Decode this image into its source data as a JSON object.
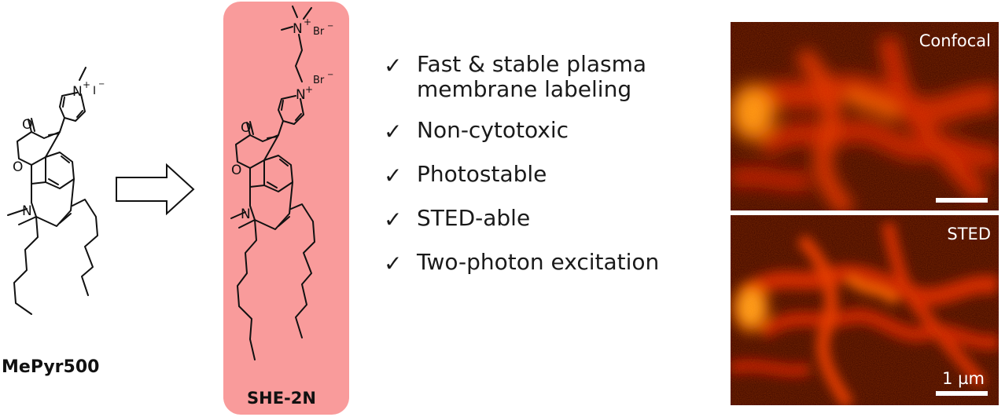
{
  "molecule_left": {
    "name": "MePyr500",
    "counterion": "I",
    "charge": "+",
    "atoms": {
      "n_pyridinium": "N",
      "o_ring": "O",
      "o_carbonyl": "O",
      "n_amine": "N"
    }
  },
  "molecule_right": {
    "name": "SHE-2N",
    "counterion_1": "Br",
    "counterion_2": "Br",
    "charge": "+",
    "atoms": {
      "n_ammonium": "N",
      "n_pyridinium": "N",
      "o_ring": "O",
      "o_carbonyl": "O",
      "n_amine": "N"
    },
    "panel_color": "#f99b9b"
  },
  "features": [
    {
      "check": "✓",
      "text": "Fast & stable plasma membrane labeling"
    },
    {
      "check": "✓",
      "text": "Non-cytotoxic"
    },
    {
      "check": "✓",
      "text": "Photostable"
    },
    {
      "check": "✓",
      "text": "STED-able"
    },
    {
      "check": "✓",
      "text": "Two-photon excitation"
    }
  ],
  "images": {
    "top_label": "Confocal",
    "bottom_label": "STED",
    "scale_label": "1 µm"
  }
}
